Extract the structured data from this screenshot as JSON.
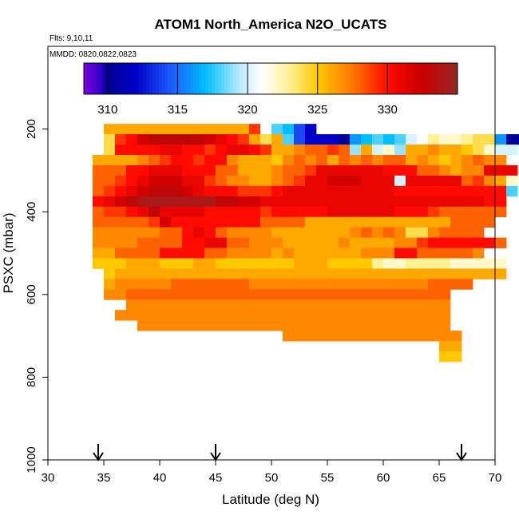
{
  "chart_data": {
    "type": "heatmap",
    "title": "ATOM1 North_America N2O_UCATS",
    "flights_label": "Flts: 9,10,11",
    "dates_label": "MMDD: 0820,0822,0823",
    "xlabel": "Latitude (deg N)",
    "ylabel": "PSXC (mbar)",
    "xlim": [
      30,
      70
    ],
    "ylim": [
      1000,
      0
    ],
    "x_ticks": [
      "30",
      "35",
      "40",
      "45",
      "50",
      "55",
      "60",
      "65",
      "70"
    ],
    "y_ticks": [
      "200",
      "400",
      "600",
      "800",
      "1000"
    ],
    "colorbar": {
      "range": [
        308.3,
        335
      ],
      "ticks": [
        "310",
        "315",
        "320",
        "325",
        "330"
      ]
    },
    "arrows_latitude": [
      34.5,
      45,
      67
    ],
    "cell_lat_width": 1,
    "cell_p_height": 25,
    "rows": [
      {
        "p": 200,
        "lat0": 35,
        "values": [
          326,
          326,
          326,
          326,
          326,
          326,
          326,
          326,
          326,
          326,
          326,
          326,
          326,
          329,
          321,
          318,
          317,
          314,
          312
        ]
      },
      {
        "p": 225,
        "lat0": 35,
        "values": [
          324,
          329,
          330,
          332,
          333,
          333,
          333,
          333,
          333,
          332,
          331,
          330,
          329,
          326,
          324,
          326,
          318,
          314,
          312,
          312,
          312,
          310,
          316,
          317,
          318,
          317,
          318,
          320,
          321,
          323,
          322,
          322,
          323,
          324,
          324,
          316,
          310,
          310
        ]
      },
      {
        "p": 250,
        "lat0": 35,
        "values": [
          324,
          330,
          330,
          330,
          330,
          331,
          331,
          330,
          330,
          329,
          330,
          331,
          331,
          330,
          329,
          326,
          326,
          327,
          328,
          328,
          329,
          328,
          319,
          326,
          320,
          322,
          319,
          326,
          326,
          327,
          326,
          326,
          325,
          324,
          322,
          320,
          320
        ]
      },
      {
        "p": 275,
        "lat0": 34,
        "values": [
          326,
          326,
          326,
          326,
          327,
          328,
          329,
          330,
          330,
          329,
          330,
          330,
          327,
          326,
          326,
          326,
          325,
          327,
          328,
          327,
          328,
          326,
          328,
          327,
          328,
          327,
          328,
          328,
          326,
          327,
          326,
          325,
          326,
          327,
          328,
          327,
          327
        ]
      },
      {
        "p": 300,
        "lat0": 34,
        "values": [
          328,
          328,
          328,
          330,
          330,
          331,
          331,
          331,
          330,
          330,
          330,
          328,
          328,
          326,
          326,
          326,
          327,
          328,
          328,
          329,
          331,
          331,
          331,
          331,
          331,
          331,
          330,
          330,
          330,
          328,
          328,
          327,
          326,
          327,
          327,
          331,
          331,
          331
        ]
      },
      {
        "p": 325,
        "lat0": 34,
        "values": [
          328,
          328,
          329,
          330,
          331,
          332,
          332,
          332,
          331,
          331,
          329,
          328,
          327,
          327,
          326,
          326,
          327,
          328,
          329,
          331,
          331,
          332,
          332,
          332,
          331,
          331,
          331,
          320,
          331,
          331,
          331,
          331,
          331,
          328,
          329,
          327,
          326,
          322
        ]
      },
      {
        "p": 350,
        "lat0": 34,
        "values": [
          328,
          329,
          330,
          331,
          332,
          333,
          333,
          333,
          332,
          331,
          330,
          330,
          330,
          329,
          329,
          329,
          330,
          331,
          331,
          331,
          331,
          331,
          331,
          331,
          331,
          331,
          331,
          330,
          330,
          330,
          330,
          330,
          330,
          330,
          330,
          330,
          330,
          318
        ]
      },
      {
        "p": 375,
        "lat0": 34,
        "values": [
          330,
          331,
          332,
          333,
          334,
          334,
          334,
          334,
          334,
          334,
          334,
          333,
          333,
          332,
          332,
          331,
          331,
          331,
          331,
          331,
          331,
          331,
          331,
          331,
          331,
          331,
          331,
          331,
          331,
          331,
          331,
          331,
          331,
          331,
          331,
          330,
          330
        ]
      },
      {
        "p": 400,
        "lat0": 34,
        "values": [
          328,
          329,
          329,
          330,
          331,
          333,
          331,
          331,
          331,
          331,
          330,
          330,
          330,
          330,
          330,
          329,
          330,
          330,
          330,
          330,
          330,
          331,
          331,
          331,
          331,
          331,
          331,
          330,
          330,
          330,
          329,
          328,
          328,
          328,
          328,
          328,
          328
        ]
      },
      {
        "p": 425,
        "lat0": 34,
        "values": [
          328,
          328,
          328,
          328,
          328,
          329,
          332,
          330,
          330,
          330,
          330,
          330,
          330,
          330,
          330,
          328,
          328,
          328,
          328,
          326,
          326,
          326,
          326,
          326,
          326,
          326,
          326,
          326,
          326,
          326,
          326,
          326,
          328,
          328,
          328,
          328
        ]
      },
      {
        "p": 450,
        "lat0": 34,
        "values": [
          327,
          327,
          327,
          327,
          327,
          327,
          328,
          328,
          330,
          331,
          330,
          328,
          327,
          327,
          327,
          327,
          326,
          326,
          326,
          326,
          326,
          326,
          326,
          327,
          328,
          327,
          328,
          327,
          324,
          324,
          327,
          328,
          328,
          328,
          328
        ]
      },
      {
        "p": 475,
        "lat0": 34,
        "values": [
          327,
          327,
          327,
          327,
          328,
          328,
          328,
          328,
          330,
          330,
          331,
          331,
          328,
          328,
          327,
          327,
          327,
          326,
          326,
          326,
          326,
          326,
          327,
          326,
          326,
          326,
          326,
          327,
          327,
          329,
          330,
          330,
          330,
          330,
          330,
          330,
          328
        ]
      },
      {
        "p": 500,
        "lat0": 34,
        "values": [
          326,
          326,
          328,
          328,
          328,
          328,
          330,
          330,
          330,
          330,
          328,
          328,
          327,
          327,
          327,
          327,
          326,
          327,
          326,
          326,
          326,
          326,
          326,
          326,
          327,
          327,
          327,
          330,
          330,
          328,
          328,
          328,
          328,
          328,
          327
        ]
      },
      {
        "p": 525,
        "lat0": 34,
        "values": [
          325,
          325,
          325,
          326,
          326,
          326,
          325,
          325,
          325,
          326,
          326,
          325,
          325,
          325,
          325,
          325,
          325,
          325,
          326,
          326,
          326,
          325,
          325,
          325,
          325,
          323,
          322,
          322,
          323,
          323,
          323,
          323,
          322,
          322,
          322,
          322,
          322
        ]
      },
      {
        "p": 550,
        "lat0": 35,
        "values": [
          325,
          326,
          326,
          326,
          326,
          326,
          326,
          326,
          326,
          326,
          326,
          326,
          326,
          326,
          326,
          326,
          326,
          326,
          326,
          326,
          326,
          326,
          326,
          326,
          326,
          326,
          326,
          326,
          326,
          326,
          326,
          326,
          326,
          326,
          326,
          326
        ]
      },
      {
        "p": 575,
        "lat0": 35,
        "values": [
          326,
          327,
          327,
          327,
          327,
          327,
          328,
          328,
          328,
          328,
          328,
          328,
          328,
          327,
          327,
          327,
          327,
          327,
          327,
          327,
          327,
          327,
          327,
          327,
          327,
          327,
          327,
          327,
          327,
          328,
          328,
          328,
          328
        ]
      },
      {
        "p": 600,
        "lat0": 35,
        "values": [
          327,
          327,
          328,
          328,
          328,
          328,
          328,
          328,
          328,
          328,
          328,
          328,
          328,
          328,
          328,
          328,
          328,
          328,
          328,
          328,
          328,
          328,
          328,
          328,
          328,
          328,
          328,
          328,
          328,
          328,
          328
        ]
      },
      {
        "p": 625,
        "lat0": 37,
        "values": [
          327,
          327,
          327,
          327,
          327,
          327,
          327,
          327,
          327,
          327,
          327,
          327,
          327,
          327,
          327,
          327,
          327,
          327,
          327,
          327,
          327,
          327,
          327,
          327,
          327,
          327,
          327,
          327,
          327
        ]
      },
      {
        "p": 650,
        "lat0": 36,
        "values": [
          327,
          327,
          327,
          327,
          327,
          327,
          327,
          327,
          327,
          327,
          327,
          327,
          327,
          327,
          327,
          327,
          327,
          327,
          327,
          327,
          327,
          327,
          327,
          327,
          327,
          327,
          327,
          327,
          327,
          327
        ]
      },
      {
        "p": 675,
        "lat0": 38,
        "values": [
          327,
          327,
          327,
          327,
          327,
          327,
          327,
          327,
          327,
          327,
          327,
          327,
          327,
          327,
          327,
          327,
          327,
          327,
          327,
          327,
          327,
          327,
          327,
          327,
          327,
          327,
          327,
          327
        ]
      },
      {
        "p": 700,
        "lat0": 51,
        "values": [
          327,
          327,
          327,
          327,
          327,
          327,
          327,
          327,
          327,
          327,
          327,
          327,
          327,
          327,
          327,
          327
        ]
      },
      {
        "p": 725,
        "lat0": 65,
        "values": [
          326,
          326
        ]
      },
      {
        "p": 750,
        "lat0": 65,
        "values": [
          325,
          325
        ]
      }
    ]
  }
}
